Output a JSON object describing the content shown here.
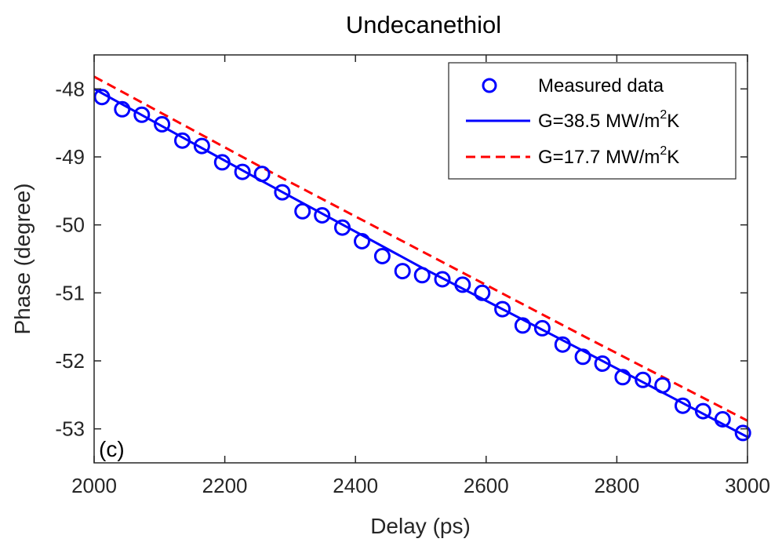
{
  "chart_data": {
    "type": "line",
    "title": "Undecanethiol",
    "xlabel": "Delay (ps)",
    "ylabel": "Phase (degree)",
    "xlim": [
      2000,
      3000
    ],
    "ylim": [
      -53.5,
      -47.5
    ],
    "xticks": [
      2000,
      2200,
      2400,
      2600,
      2800,
      3000
    ],
    "yticks": [
      -48,
      -49,
      -50,
      -51,
      -52,
      -53
    ],
    "xtick_labels": [
      "2000",
      "2200",
      "2400",
      "2600",
      "2800",
      "3000"
    ],
    "ytick_labels": [
      "-48",
      "-49",
      "-50",
      "-51",
      "-52",
      "-53"
    ],
    "grid": false,
    "legend_position": "top-right",
    "annotation": "(c)",
    "series": [
      {
        "name": "Measured data",
        "kind": "markers",
        "color": "#0000ff",
        "x": [
          2012,
          2043,
          2073,
          2104,
          2135,
          2165,
          2196,
          2227,
          2257,
          2288,
          2319,
          2349,
          2380,
          2410,
          2441,
          2472,
          2502,
          2533,
          2564,
          2594,
          2625,
          2656,
          2686,
          2717,
          2748,
          2778,
          2809,
          2840,
          2870,
          2901,
          2932,
          2962,
          2993
        ],
        "y": [
          -48.12,
          -48.3,
          -48.38,
          -48.52,
          -48.76,
          -48.84,
          -49.08,
          -49.22,
          -49.25,
          -49.52,
          -49.8,
          -49.86,
          -50.04,
          -50.24,
          -50.46,
          -50.68,
          -50.74,
          -50.8,
          -50.88,
          -51.0,
          -51.24,
          -51.48,
          -51.52,
          -51.76,
          -51.94,
          -52.04,
          -52.24,
          -52.28,
          -52.36,
          -52.66,
          -52.74,
          -52.86,
          -53.06
        ]
      },
      {
        "name_prefix": "G=38.5 MW/m",
        "name_sup": "2",
        "name_suffix": "K",
        "kind": "solid",
        "color": "#0000ff",
        "x": [
          2000,
          2250,
          2500,
          2750,
          3000
        ],
        "y": [
          -48.0,
          -49.32,
          -50.62,
          -51.86,
          -53.12
        ]
      },
      {
        "name_prefix": "G=17.7 MW/m",
        "name_sup": "2",
        "name_suffix": "K",
        "kind": "dashed",
        "color": "#ff0000",
        "x": [
          2000,
          2250,
          2500,
          2750,
          3000
        ],
        "y": [
          -47.82,
          -49.12,
          -50.38,
          -51.64,
          -52.88
        ]
      }
    ]
  }
}
